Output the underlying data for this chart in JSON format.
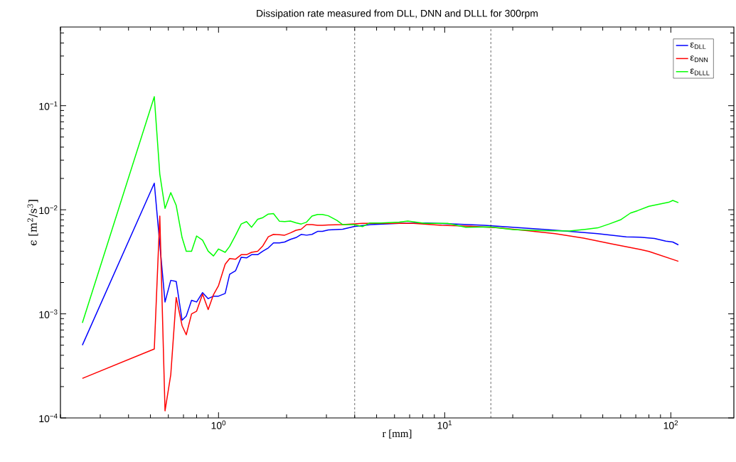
{
  "chart_data": {
    "type": "line",
    "title": "Dissipation rate measured from DLL, DNN and DLLL for 300rpm",
    "xlabel": "r [mm]",
    "ylabel": "ϵ  [m$^{2}$/s$^{3}$]",
    "log": "xy",
    "legend": "top right",
    "marker": "none",
    "line_style": "solid",
    "xlim": [
      0.2,
      190
    ],
    "ylim": [
      0.0001,
      0.57
    ],
    "xticks": [
      {
        "value": 1,
        "label": "10$^{0}$"
      },
      {
        "value": 10,
        "label": "10$^{1}$"
      },
      {
        "value": 100,
        "label": "10$^{2}$"
      }
    ],
    "yticks": [
      {
        "value": 0.0001,
        "label": "10$^{−4}$"
      },
      {
        "value": 0.001,
        "label": "10$^{−3}$"
      },
      {
        "value": 0.01,
        "label": "10$^{−2}$"
      },
      {
        "value": 0.1,
        "label": "10$^{−1}$"
      }
    ],
    "ref_lines": [
      {
        "axis": "x",
        "value": 4,
        "color": "#000000",
        "line_style": "dashed"
      },
      {
        "axis": "x",
        "value": 16,
        "color": "#000000",
        "line_style": "dashed"
      }
    ],
    "series": [
      {
        "name": "ε$_{DLL}$",
        "color": "#0000ff",
        "x": [
          0.25,
          0.52,
          0.58,
          0.615,
          0.65,
          0.69,
          0.72,
          0.76,
          0.8,
          0.85,
          0.9,
          0.95,
          1.0,
          1.07,
          1.12,
          1.19,
          1.26,
          1.33,
          1.4,
          1.49,
          1.57,
          1.66,
          1.75,
          1.86,
          1.96,
          2.08,
          2.2,
          2.32,
          2.45,
          2.59,
          2.74,
          2.88,
          3.06,
          3.54,
          3.97,
          4.72,
          6.3,
          8.4,
          11.2,
          15,
          20,
          26.7,
          35.6,
          47.5,
          63.5,
          73.3,
          84.7,
          95,
          102,
          108
        ],
        "values": [
          0.0005,
          0.018,
          0.0013,
          0.0021,
          0.00205,
          0.00087,
          0.00095,
          0.00135,
          0.0013,
          0.0016,
          0.0014,
          0.00148,
          0.00148,
          0.00157,
          0.0024,
          0.0026,
          0.0035,
          0.00345,
          0.0037,
          0.0037,
          0.004,
          0.0043,
          0.0048,
          0.0048,
          0.0049,
          0.0052,
          0.0054,
          0.0058,
          0.0057,
          0.0058,
          0.0062,
          0.0062,
          0.0064,
          0.0065,
          0.0069,
          0.0072,
          0.0074,
          0.00745,
          0.0073,
          0.0071,
          0.0068,
          0.0065,
          0.0062,
          0.0059,
          0.0055,
          0.00545,
          0.0053,
          0.005,
          0.0049,
          0.0046
        ]
      },
      {
        "name": "ε$_{DNN}$",
        "color": "#ff0000",
        "x": [
          0.25,
          0.52,
          0.55,
          0.58,
          0.615,
          0.65,
          0.69,
          0.72,
          0.76,
          0.8,
          0.85,
          0.9,
          0.95,
          1.0,
          1.07,
          1.12,
          1.19,
          1.26,
          1.33,
          1.4,
          1.49,
          1.57,
          1.66,
          1.75,
          1.86,
          1.96,
          2.08,
          2.2,
          2.32,
          2.45,
          2.59,
          2.74,
          2.88,
          3.06,
          3.54,
          4.33,
          5.45,
          7.28,
          9.7,
          13,
          17.3,
          23.1,
          30.8,
          41.1,
          55,
          73.3,
          80,
          108
        ],
        "values": [
          0.00024,
          0.00046,
          0.0087,
          0.000117,
          0.00026,
          0.00144,
          0.00077,
          0.00063,
          0.001,
          0.00106,
          0.00155,
          0.0011,
          0.00153,
          0.00187,
          0.003,
          0.0034,
          0.00335,
          0.0037,
          0.0037,
          0.0039,
          0.004,
          0.0045,
          0.0055,
          0.0058,
          0.00575,
          0.0057,
          0.006,
          0.00635,
          0.0065,
          0.0072,
          0.0072,
          0.0071,
          0.0071,
          0.00715,
          0.0072,
          0.0074,
          0.0074,
          0.0074,
          0.0071,
          0.00695,
          0.0067,
          0.0063,
          0.0059,
          0.00535,
          0.0047,
          0.00416,
          0.00398,
          0.0032
        ]
      },
      {
        "name": "ε$_{DLLL}$",
        "color": "#00ff00",
        "x": [
          0.25,
          0.52,
          0.55,
          0.58,
          0.615,
          0.65,
          0.69,
          0.72,
          0.76,
          0.8,
          0.85,
          0.9,
          0.95,
          1.0,
          1.07,
          1.12,
          1.19,
          1.26,
          1.33,
          1.4,
          1.49,
          1.57,
          1.66,
          1.75,
          1.86,
          1.96,
          2.08,
          2.2,
          2.32,
          2.45,
          2.59,
          2.74,
          2.88,
          3.06,
          3.34,
          3.54,
          3.97,
          4.33,
          4.65,
          5.22,
          6.3,
          6.87,
          8.17,
          10.3,
          12.4,
          15.9,
          20,
          26.7,
          35.6,
          42.4,
          47.5,
          53.4,
          59.9,
          66.3,
          71.2,
          80,
          97.9,
          102,
          108
        ],
        "values": [
          0.00082,
          0.122,
          0.022,
          0.0103,
          0.0146,
          0.011,
          0.0054,
          0.004,
          0.004,
          0.0056,
          0.0051,
          0.004,
          0.0036,
          0.0042,
          0.0039,
          0.00445,
          0.0057,
          0.0073,
          0.0077,
          0.0068,
          0.0081,
          0.0084,
          0.0091,
          0.0092,
          0.00775,
          0.0077,
          0.0078,
          0.0075,
          0.0073,
          0.0076,
          0.0087,
          0.009,
          0.009,
          0.00875,
          0.0079,
          0.0072,
          0.0072,
          0.0069,
          0.00745,
          0.00745,
          0.0076,
          0.0078,
          0.0074,
          0.0074,
          0.0068,
          0.00685,
          0.00645,
          0.0063,
          0.00625,
          0.0065,
          0.0067,
          0.0073,
          0.008,
          0.0093,
          0.0098,
          0.0108,
          0.0118,
          0.0123,
          0.0117
        ]
      }
    ]
  }
}
